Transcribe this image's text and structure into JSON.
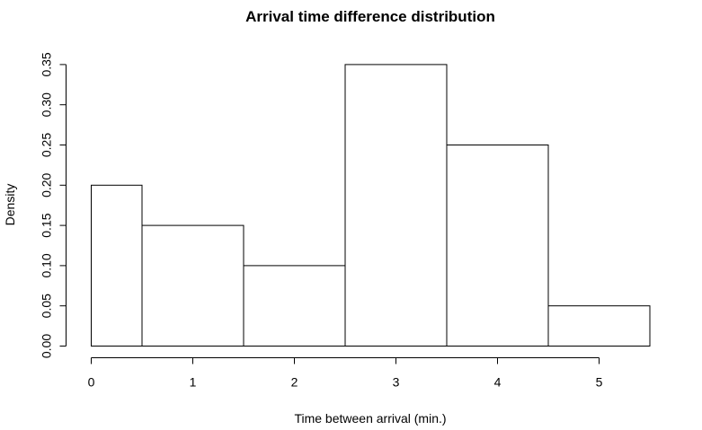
{
  "chart_data": {
    "type": "bar",
    "title": "Arrival time difference distribution",
    "xlabel": "Time between arrival (min.)",
    "ylabel": "Density",
    "bins": [
      {
        "from": 0,
        "to": 0.5,
        "density": 0.2
      },
      {
        "from": 0.5,
        "to": 1.5,
        "density": 0.15
      },
      {
        "from": 1.5,
        "to": 2.5,
        "density": 0.1
      },
      {
        "from": 2.5,
        "to": 3.5,
        "density": 0.35
      },
      {
        "from": 3.5,
        "to": 4.5,
        "density": 0.25
      },
      {
        "from": 4.5,
        "to": 5.5,
        "density": 0.05
      }
    ],
    "xlim": [
      0,
      5.5
    ],
    "ylim": [
      0,
      0.35
    ],
    "x_ticks": [
      0,
      1,
      2,
      3,
      4,
      5
    ],
    "x_tick_labels": [
      "0",
      "1",
      "2",
      "3",
      "4",
      "5"
    ],
    "y_ticks": [
      0,
      0.05,
      0.1,
      0.15,
      0.2,
      0.25,
      0.3,
      0.35
    ],
    "y_tick_labels": [
      "0.00",
      "0.05",
      "0.10",
      "0.15",
      "0.20",
      "0.25",
      "0.30",
      "0.35"
    ],
    "grid": false,
    "colors": {
      "bar_fill": "#ffffff",
      "bar_stroke": "#000000"
    }
  }
}
